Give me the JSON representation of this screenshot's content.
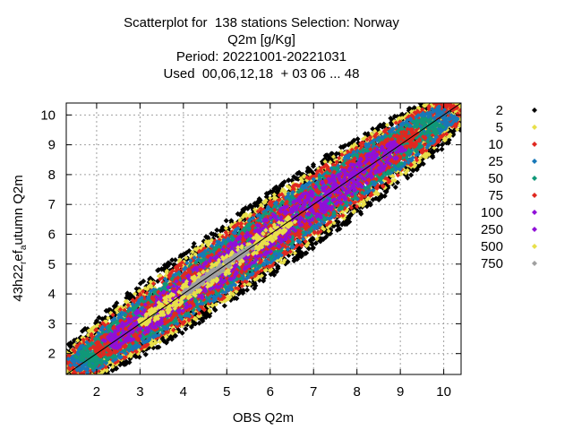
{
  "title_lines": [
    "Scatterplot for  138 stations Selection: Norway",
    "Q2m [g/Kg]",
    "Period: 20221001-20221031",
    "Used  00,06,12,18  + 03 06 ... 48"
  ],
  "chart_data": {
    "type": "scatter",
    "xlabel": "OBS Q2m",
    "ylabel_main": "43h22",
    "ylabel_sub": "r",
    "ylabel_mid": "ef",
    "ylabel_sub2": "a",
    "ylabel_tail": "utumn Q2m",
    "xlim": [
      1.3,
      10.4
    ],
    "ylim": [
      1.3,
      10.4
    ],
    "xticks": [
      2,
      3,
      4,
      5,
      6,
      7,
      8,
      9,
      10
    ],
    "yticks": [
      2,
      3,
      4,
      5,
      6,
      7,
      8,
      9,
      10
    ],
    "grid": true,
    "diagonal_line": true,
    "legend_position": "right",
    "density_legend": [
      {
        "label": "2",
        "color": "#000000"
      },
      {
        "label": "5",
        "color": "#e8e04a"
      },
      {
        "label": "10",
        "color": "#e02820"
      },
      {
        "label": "25",
        "color": "#1878b8"
      },
      {
        "label": "50",
        "color": "#109878"
      },
      {
        "label": "75",
        "color": "#e02820"
      },
      {
        "label": "100",
        "color": "#9010d8"
      },
      {
        "label": "250",
        "color": "#9010d8"
      },
      {
        "label": "500",
        "color": "#e8e04a"
      },
      {
        "label": "750",
        "color": "#a0a0a0"
      }
    ],
    "density_bands": [
      {
        "level": "2",
        "color": "#000000",
        "center_offset": 0.0,
        "half_width": 1.05,
        "x_range": [
          1.3,
          10.4
        ]
      },
      {
        "level": "5",
        "color": "#e8e04a",
        "center_offset": 0.0,
        "half_width": 0.9,
        "x_range": [
          1.3,
          10.4
        ]
      },
      {
        "level": "10",
        "color": "#e02820",
        "center_offset": 0.0,
        "half_width": 0.8,
        "x_range": [
          1.4,
          10.3
        ]
      },
      {
        "level": "25",
        "color": "#1878b8",
        "center_offset": 0.0,
        "half_width": 0.7,
        "x_range": [
          1.5,
          10.1
        ]
      },
      {
        "level": "50",
        "color": "#109878",
        "center_offset": 0.0,
        "half_width": 0.6,
        "x_range": [
          1.7,
          9.8
        ]
      },
      {
        "level": "75",
        "color": "#e02820",
        "center_offset": 0.0,
        "half_width": 0.52,
        "x_range": [
          2.0,
          9.4
        ]
      },
      {
        "level": "100",
        "color": "#9010d8",
        "center_offset": 0.0,
        "half_width": 0.45,
        "x_range": [
          2.3,
          9.0
        ]
      },
      {
        "level": "500",
        "color": "#e8e04a",
        "center_offset": 0.0,
        "half_width": 0.25,
        "x_range": [
          3.0,
          6.5
        ]
      },
      {
        "level": "750",
        "color": "#a0a0a0",
        "center_offset": 0.0,
        "half_width": 0.1,
        "x_range": [
          4.0,
          5.6
        ]
      }
    ]
  }
}
